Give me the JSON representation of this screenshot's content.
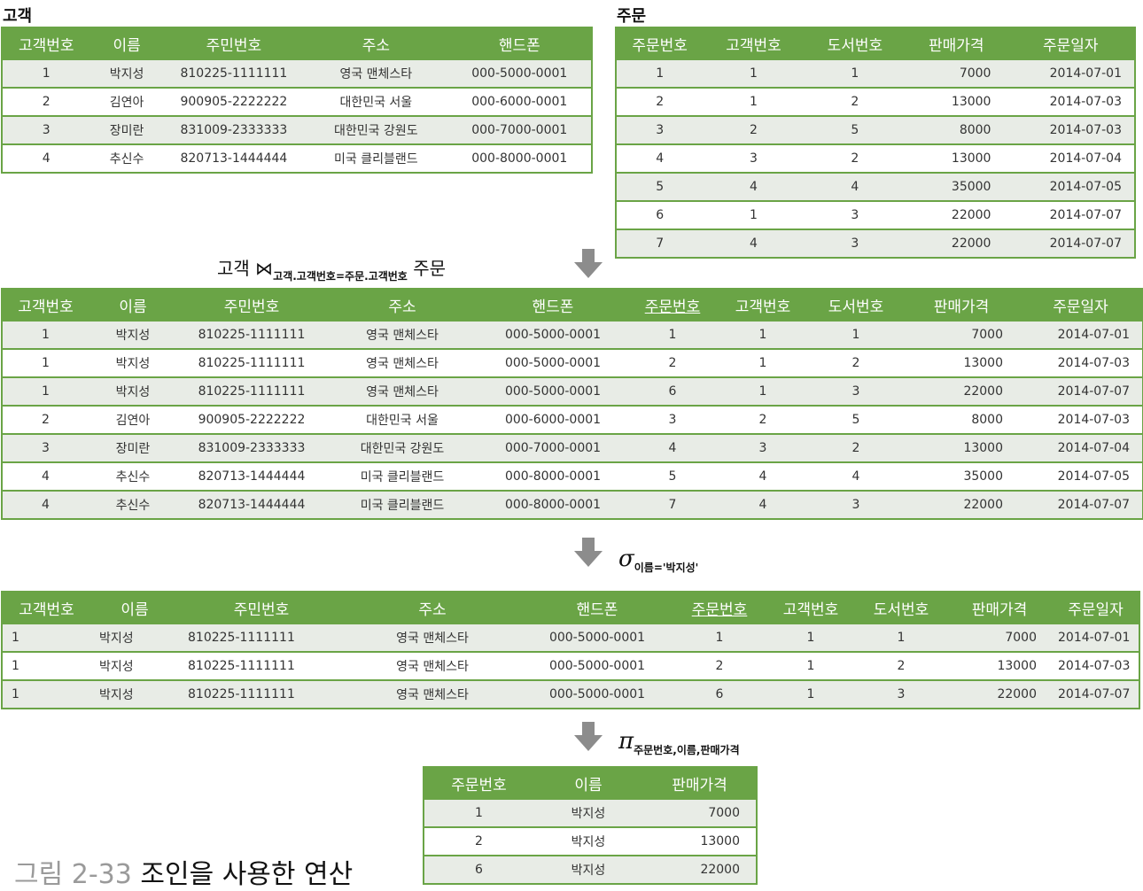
{
  "customer": {
    "label": "고객",
    "headers": [
      "고객번호",
      "이름",
      "주민번호",
      "주소",
      "핸드폰"
    ],
    "rows": [
      [
        "1",
        "박지성",
        "810225-1111111",
        "영국 맨체스타",
        "000-5000-0001"
      ],
      [
        "2",
        "김연아",
        "900905-2222222",
        "대한민국 서울",
        "000-6000-0001"
      ],
      [
        "3",
        "장미란",
        "831009-2333333",
        "대한민국 강원도",
        "000-7000-0001"
      ],
      [
        "4",
        "추신수",
        "820713-1444444",
        "미국 클리블랜드",
        "000-8000-0001"
      ]
    ]
  },
  "order": {
    "label": "주문",
    "headers": [
      "주문번호",
      "고객번호",
      "도서번호",
      "판매가격",
      "주문일자"
    ],
    "rows": [
      [
        "1",
        "1",
        "1",
        "7000",
        "2014-07-01"
      ],
      [
        "2",
        "1",
        "2",
        "13000",
        "2014-07-03"
      ],
      [
        "3",
        "2",
        "5",
        "8000",
        "2014-07-03"
      ],
      [
        "4",
        "3",
        "2",
        "13000",
        "2014-07-04"
      ],
      [
        "5",
        "4",
        "4",
        "35000",
        "2014-07-05"
      ],
      [
        "6",
        "1",
        "3",
        "22000",
        "2014-07-07"
      ],
      [
        "7",
        "4",
        "3",
        "22000",
        "2014-07-07"
      ]
    ]
  },
  "join_op": {
    "left": "고객",
    "symbol": "⋈",
    "condition": "고객.고객번호=주문.고객번호",
    "right": "주문"
  },
  "joined": {
    "headers": [
      "고객번호",
      "이름",
      "주민번호",
      "주소",
      "핸드폰",
      "주문번호",
      "고객번호",
      "도서번호",
      "판매가격",
      "주문일자"
    ],
    "rows": [
      [
        "1",
        "박지성",
        "810225-1111111",
        "영국 맨체스타",
        "000-5000-0001",
        "1",
        "1",
        "1",
        "7000",
        "2014-07-01"
      ],
      [
        "1",
        "박지성",
        "810225-1111111",
        "영국 맨체스타",
        "000-5000-0001",
        "2",
        "1",
        "2",
        "13000",
        "2014-07-03"
      ],
      [
        "1",
        "박지성",
        "810225-1111111",
        "영국 맨체스타",
        "000-5000-0001",
        "6",
        "1",
        "3",
        "22000",
        "2014-07-07"
      ],
      [
        "2",
        "김연아",
        "900905-2222222",
        "대한민국 서울",
        "000-6000-0001",
        "3",
        "2",
        "5",
        "8000",
        "2014-07-03"
      ],
      [
        "3",
        "장미란",
        "831009-2333333",
        "대한민국 강원도",
        "000-7000-0001",
        "4",
        "3",
        "2",
        "13000",
        "2014-07-04"
      ],
      [
        "4",
        "추신수",
        "820713-1444444",
        "미국 클리블랜드",
        "000-8000-0001",
        "5",
        "4",
        "4",
        "35000",
        "2014-07-05"
      ],
      [
        "4",
        "추신수",
        "820713-1444444",
        "미국 클리블랜드",
        "000-8000-0001",
        "7",
        "4",
        "3",
        "22000",
        "2014-07-07"
      ]
    ]
  },
  "select_op": {
    "symbol": "σ",
    "condition": "이름='박지성'"
  },
  "selected": {
    "headers": [
      "고객번호",
      "이름",
      "주민번호",
      "주소",
      "핸드폰",
      "주문번호",
      "고객번호",
      "도서번호",
      "판매가격",
      "주문일자"
    ],
    "rows": [
      [
        "1",
        "박지성",
        "810225-1111111",
        "영국 맨체스타",
        "000-5000-0001",
        "1",
        "1",
        "1",
        "7000",
        "2014-07-01"
      ],
      [
        "1",
        "박지성",
        "810225-1111111",
        "영국 맨체스타",
        "000-5000-0001",
        "2",
        "1",
        "2",
        "13000",
        "2014-07-03"
      ],
      [
        "1",
        "박지성",
        "810225-1111111",
        "영국 맨체스타",
        "000-5000-0001",
        "6",
        "1",
        "3",
        "22000",
        "2014-07-07"
      ]
    ]
  },
  "project_op": {
    "symbol": "π",
    "attributes": "주문번호,이름,판매가격"
  },
  "projected": {
    "headers": [
      "주문번호",
      "이름",
      "판매가격"
    ],
    "rows": [
      [
        "1",
        "박지성",
        "7000"
      ],
      [
        "2",
        "박지성",
        "13000"
      ],
      [
        "6",
        "박지성",
        "22000"
      ]
    ]
  },
  "caption": {
    "number": "그림 2-33",
    "title": "조인을 사용한 연산"
  },
  "colors": {
    "header_green": "#6aa446",
    "row_alt": "#e8ece6",
    "arrow_gray": "#8c8c8c"
  }
}
